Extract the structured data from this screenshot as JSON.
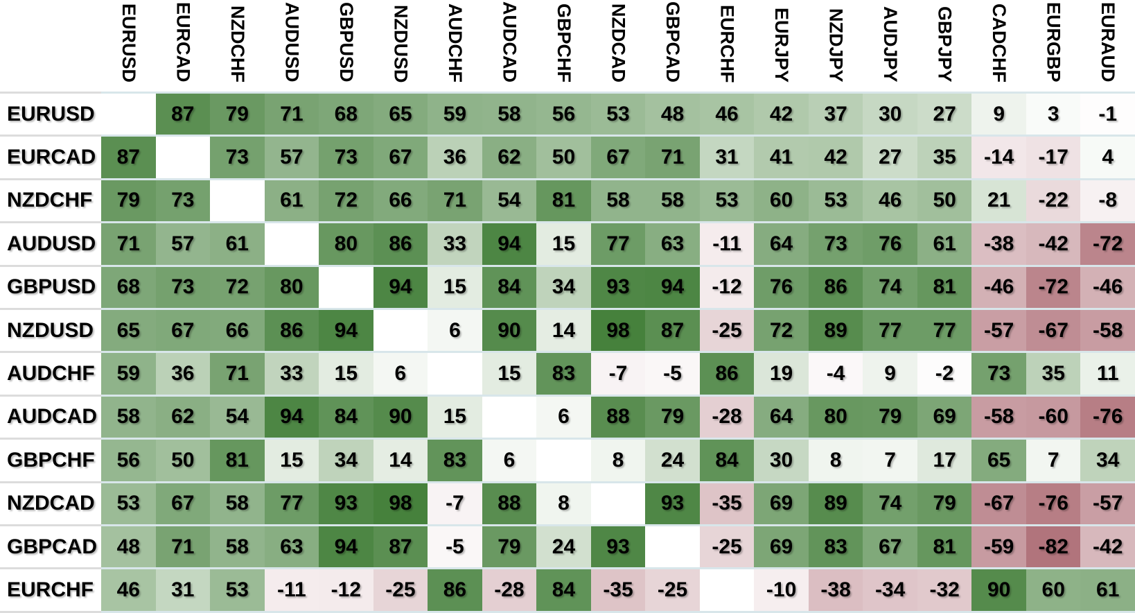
{
  "chart_data": {
    "type": "heatmap",
    "description": "Forex pair correlation matrix, values in percent from -100 to 100",
    "columns": [
      "EURUSD",
      "EURCAD",
      "NZDCHF",
      "AUDUSD",
      "GBPUSD",
      "NZDUSD",
      "AUDCHF",
      "AUDCAD",
      "GBPCHF",
      "NZDCAD",
      "GBPCAD",
      "EURCHF",
      "EURJPY",
      "NZDJPY",
      "AUDJPY",
      "GBPJPY",
      "CADCHF",
      "EURGBP",
      "EURAUD"
    ],
    "rows": [
      {
        "label": "EURUSD",
        "values": [
          null,
          87,
          79,
          71,
          68,
          65,
          59,
          58,
          56,
          53,
          48,
          46,
          42,
          37,
          30,
          27,
          9,
          3,
          -1
        ]
      },
      {
        "label": "EURCAD",
        "values": [
          87,
          null,
          73,
          57,
          73,
          67,
          36,
          62,
          50,
          67,
          71,
          31,
          41,
          42,
          27,
          35,
          -14,
          -17,
          4
        ]
      },
      {
        "label": "NZDCHF",
        "values": [
          79,
          73,
          null,
          61,
          72,
          66,
          71,
          54,
          81,
          58,
          58,
          53,
          60,
          53,
          46,
          50,
          21,
          -22,
          -8
        ]
      },
      {
        "label": "AUDUSD",
        "values": [
          71,
          57,
          61,
          null,
          80,
          86,
          33,
          94,
          15,
          77,
          63,
          -11,
          64,
          73,
          76,
          61,
          -38,
          -42,
          -72
        ]
      },
      {
        "label": "GBPUSD",
        "values": [
          68,
          73,
          72,
          80,
          null,
          94,
          15,
          84,
          34,
          93,
          94,
          -12,
          76,
          86,
          74,
          81,
          -46,
          -72,
          -46
        ]
      },
      {
        "label": "NZDUSD",
        "values": [
          65,
          67,
          66,
          86,
          94,
          null,
          6,
          90,
          14,
          98,
          87,
          -25,
          72,
          89,
          77,
          77,
          -57,
          -67,
          -58
        ]
      },
      {
        "label": "AUDCHF",
        "values": [
          59,
          36,
          71,
          33,
          15,
          6,
          null,
          15,
          83,
          -7,
          -5,
          86,
          19,
          -4,
          9,
          -2,
          73,
          35,
          11
        ]
      },
      {
        "label": "AUDCAD",
        "values": [
          58,
          62,
          54,
          94,
          84,
          90,
          15,
          null,
          6,
          88,
          79,
          -28,
          64,
          80,
          79,
          69,
          -58,
          -60,
          -76
        ]
      },
      {
        "label": "GBPCHF",
        "values": [
          56,
          50,
          81,
          15,
          34,
          14,
          83,
          6,
          null,
          8,
          24,
          84,
          30,
          8,
          7,
          17,
          65,
          7,
          34
        ]
      },
      {
        "label": "NZDCAD",
        "values": [
          53,
          67,
          58,
          77,
          93,
          98,
          -7,
          88,
          8,
          null,
          93,
          -35,
          69,
          89,
          74,
          79,
          -67,
          -76,
          -57
        ]
      },
      {
        "label": "GBPCAD",
        "values": [
          48,
          71,
          58,
          63,
          94,
          87,
          -5,
          79,
          24,
          93,
          null,
          -25,
          69,
          83,
          67,
          81,
          -59,
          -82,
          -42
        ]
      },
      {
        "label": "EURCHF",
        "values": [
          46,
          31,
          53,
          -11,
          -12,
          -25,
          86,
          -28,
          84,
          -35,
          -25,
          null,
          -10,
          -38,
          -34,
          -32,
          90,
          60,
          61
        ]
      }
    ],
    "value_range": [
      -100,
      100
    ],
    "colors": {
      "positive_full": "#427e38",
      "negative_full": "#a0555f",
      "diagonal": "#ffffff",
      "row_separator_data": "#d8e6ea",
      "row_separator_label": "#dcdcdc"
    },
    "legend_position": "none",
    "grid": "row-separators-only"
  }
}
